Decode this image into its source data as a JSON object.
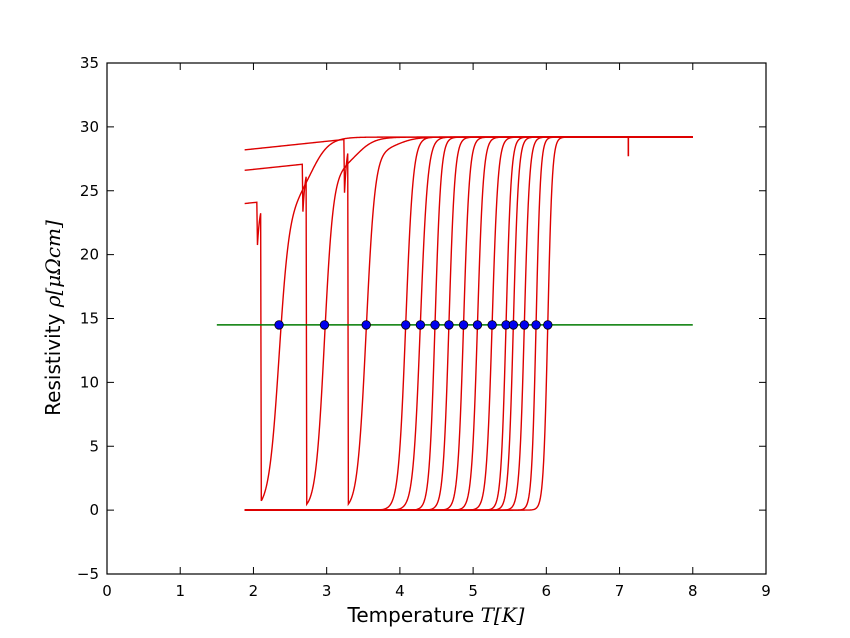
{
  "chart_data": {
    "type": "line",
    "title": "",
    "xlabel": {
      "text": "Temperature ",
      "math": "T[K]"
    },
    "ylabel": {
      "text": "Resistivity ",
      "math": "ρ[μΩcm]"
    },
    "xlim": [
      0,
      9
    ],
    "ylim": [
      -5,
      35
    ],
    "xticks": [
      "0",
      "1",
      "2",
      "3",
      "4",
      "5",
      "6",
      "7",
      "8",
      "9"
    ],
    "yticks": [
      "−5",
      "0",
      "5",
      "10",
      "15",
      "20",
      "25",
      "30",
      "35"
    ],
    "grid": false,
    "legend": "none",
    "colors": {
      "curves": "#dd0000",
      "threshold": "#007a00",
      "points": "#0000ee",
      "axes": "#000000"
    },
    "normal_state_resistivity": 29.2,
    "threshold_line": {
      "y": 14.5,
      "x": [
        1.5,
        8.0
      ]
    },
    "curves": [
      {
        "tc": 2.35,
        "width": 0.07,
        "low_T_value": 24.0
      },
      {
        "tc": 2.97,
        "width": 0.06,
        "low_T_value": 26.6
      },
      {
        "tc": 3.54,
        "width": 0.06,
        "low_T_value": 28.2
      },
      {
        "tc": 4.08,
        "width": 0.05,
        "low_T_value": 0
      },
      {
        "tc": 4.28,
        "width": 0.05,
        "low_T_value": 0
      },
      {
        "tc": 4.48,
        "width": 0.04,
        "low_T_value": 0
      },
      {
        "tc": 4.67,
        "width": 0.04,
        "low_T_value": 0
      },
      {
        "tc": 4.87,
        "width": 0.04,
        "low_T_value": 0
      },
      {
        "tc": 5.06,
        "width": 0.04,
        "low_T_value": 0
      },
      {
        "tc": 5.26,
        "width": 0.04,
        "low_T_value": 0
      },
      {
        "tc": 5.45,
        "width": 0.035,
        "low_T_value": 0
      },
      {
        "tc": 5.55,
        "width": 0.035,
        "low_T_value": 0
      },
      {
        "tc": 5.7,
        "width": 0.035,
        "low_T_value": 0
      },
      {
        "tc": 5.86,
        "width": 0.03,
        "low_T_value": 0
      },
      {
        "tc": 6.02,
        "width": 0.03,
        "low_T_value": 0
      }
    ],
    "curve_T_range": [
      1.88,
      8.0
    ],
    "glitch": {
      "x": 7.12,
      "y": 27.7
    },
    "transition_points": {
      "x": [
        2.35,
        2.97,
        3.54,
        4.08,
        4.28,
        4.48,
        4.67,
        4.87,
        5.06,
        5.26,
        5.45,
        5.55,
        5.7,
        5.86,
        6.02
      ],
      "y": [
        14.5,
        14.5,
        14.5,
        14.5,
        14.5,
        14.5,
        14.5,
        14.5,
        14.5,
        14.5,
        14.5,
        14.5,
        14.5,
        14.5,
        14.5
      ]
    }
  }
}
